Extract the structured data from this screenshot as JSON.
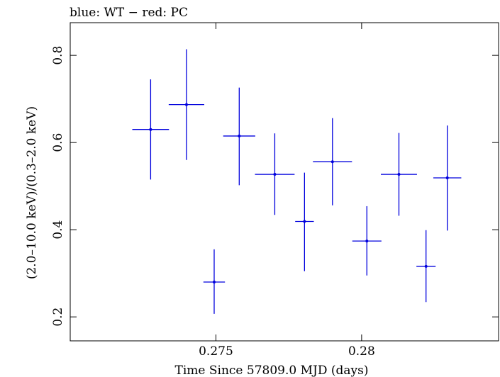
{
  "chart_data": {
    "type": "scatter",
    "title": "blue: WT − red: PC",
    "xlabel": "Time Since 57809.0 MJD (days)",
    "ylabel": "(2.0–10.0 keV)/(0.3–2.0 keV)",
    "xlim": [
      0.27,
      0.2847
    ],
    "ylim": [
      0.145,
      0.875
    ],
    "x_ticks": [
      0.275,
      0.28
    ],
    "x_tick_labels": [
      "0.275",
      "0.28"
    ],
    "y_ticks": [
      0.2,
      0.4,
      0.6,
      0.8
    ],
    "y_tick_labels": [
      "0.2",
      "0.4",
      "0.6",
      "0.8"
    ],
    "grid": false,
    "series": [
      {
        "color": "#0000dd",
        "points": [
          {
            "x": 0.27276,
            "xerr": 0.00063,
            "y": 0.63,
            "yerr_low": 0.115,
            "yerr_high": 0.115
          },
          {
            "x": 0.27399,
            "xerr": 0.00061,
            "y": 0.687,
            "yerr_low": 0.127,
            "yerr_high": 0.127
          },
          {
            "x": 0.27494,
            "xerr": 0.00037,
            "y": 0.28,
            "yerr_low": 0.073,
            "yerr_high": 0.075
          },
          {
            "x": 0.2758,
            "xerr": 0.00055,
            "y": 0.615,
            "yerr_low": 0.113,
            "yerr_high": 0.111
          },
          {
            "x": 0.27702,
            "xerr": 0.00068,
            "y": 0.527,
            "yerr_low": 0.093,
            "yerr_high": 0.094
          },
          {
            "x": 0.27804,
            "xerr": 0.00032,
            "y": 0.419,
            "yerr_low": 0.114,
            "yerr_high": 0.112
          },
          {
            "x": 0.279,
            "xerr": 0.00067,
            "y": 0.556,
            "yerr_low": 0.1,
            "yerr_high": 0.1
          },
          {
            "x": 0.28018,
            "xerr": 0.0005,
            "y": 0.374,
            "yerr_low": 0.079,
            "yerr_high": 0.08
          },
          {
            "x": 0.28128,
            "xerr": 0.00062,
            "y": 0.527,
            "yerr_low": 0.095,
            "yerr_high": 0.095
          },
          {
            "x": 0.28221,
            "xerr": 0.00033,
            "y": 0.316,
            "yerr_low": 0.082,
            "yerr_high": 0.083
          },
          {
            "x": 0.28294,
            "xerr": 0.00048,
            "y": 0.519,
            "yerr_low": 0.121,
            "yerr_high": 0.12
          }
        ]
      }
    ]
  }
}
